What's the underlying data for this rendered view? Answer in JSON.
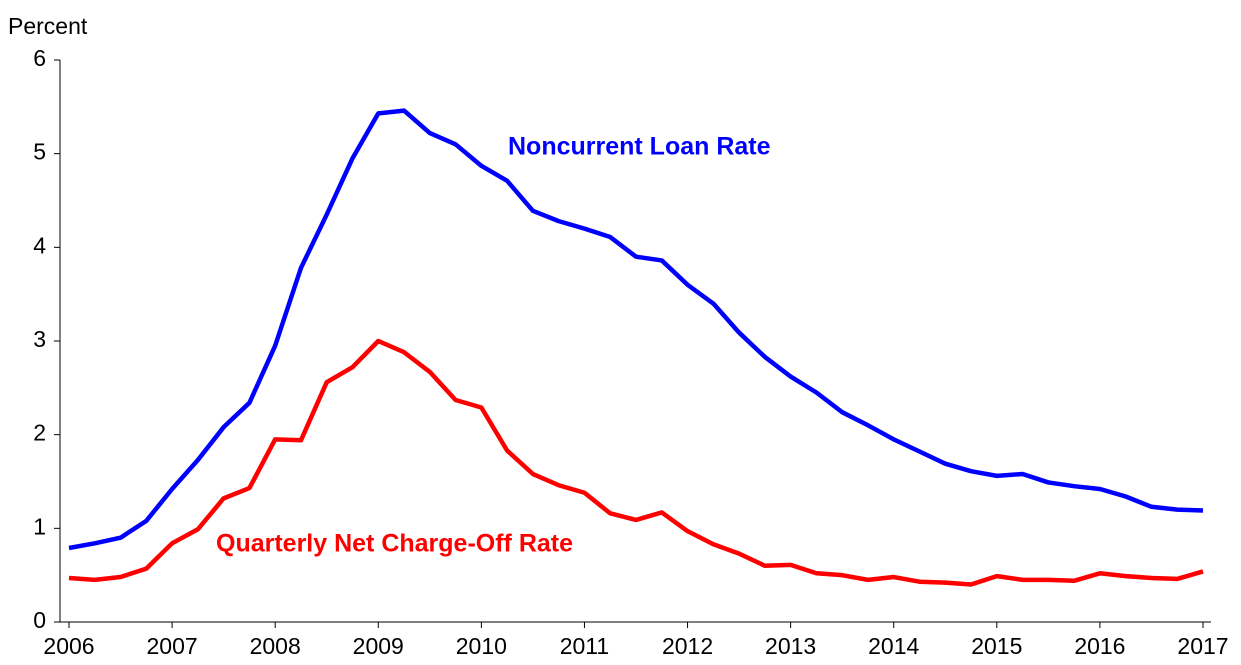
{
  "chart_data": {
    "type": "line",
    "y_label": "Percent",
    "x": [
      2006,
      2006.25,
      2006.5,
      2006.75,
      2007,
      2007.25,
      2007.5,
      2007.75,
      2008,
      2008.25,
      2008.5,
      2008.75,
      2009,
      2009.25,
      2009.5,
      2009.75,
      2010,
      2010.25,
      2010.5,
      2010.75,
      2011,
      2011.25,
      2011.5,
      2011.75,
      2012,
      2012.25,
      2012.5,
      2012.75,
      2013,
      2013.25,
      2013.5,
      2013.75,
      2014,
      2014.25,
      2014.5,
      2014.75,
      2015,
      2015.25,
      2015.5,
      2015.75,
      2016,
      2016.25,
      2016.5,
      2016.75,
      2017
    ],
    "series": [
      {
        "name": "Noncurrent Loan Rate",
        "color": "#0000ff",
        "values": [
          0.79,
          0.84,
          0.9,
          1.08,
          1.42,
          1.73,
          2.08,
          2.34,
          2.95,
          3.78,
          4.35,
          4.95,
          5.43,
          5.46,
          5.22,
          5.1,
          4.87,
          4.71,
          4.39,
          4.28,
          4.2,
          4.11,
          3.9,
          3.86,
          3.6,
          3.4,
          3.09,
          2.83,
          2.62,
          2.45,
          2.24,
          2.1,
          1.95,
          1.82,
          1.69,
          1.61,
          1.56,
          1.58,
          1.49,
          1.45,
          1.42,
          1.34,
          1.23,
          1.2,
          1.19
        ]
      },
      {
        "name": "Quarterly Net Charge-Off Rate",
        "color": "#ff0000",
        "values": [
          0.47,
          0.45,
          0.48,
          0.57,
          0.84,
          0.99,
          1.32,
          1.43,
          1.95,
          1.94,
          2.56,
          2.72,
          3.0,
          2.88,
          2.67,
          2.37,
          2.29,
          1.83,
          1.58,
          1.46,
          1.38,
          1.16,
          1.09,
          1.17,
          0.97,
          0.83,
          0.73,
          0.6,
          0.61,
          0.52,
          0.5,
          0.45,
          0.48,
          0.43,
          0.42,
          0.4,
          0.49,
          0.45,
          0.45,
          0.44,
          0.52,
          0.49,
          0.47,
          0.46,
          0.54
        ]
      }
    ],
    "xlim": [
      2006,
      2017
    ],
    "xticks": [
      2006,
      2007,
      2008,
      2009,
      2010,
      2011,
      2012,
      2013,
      2014,
      2015,
      2016,
      2017
    ],
    "ylim": [
      0,
      6
    ],
    "yticks": [
      0,
      1,
      2,
      3,
      4,
      5,
      6
    ]
  }
}
